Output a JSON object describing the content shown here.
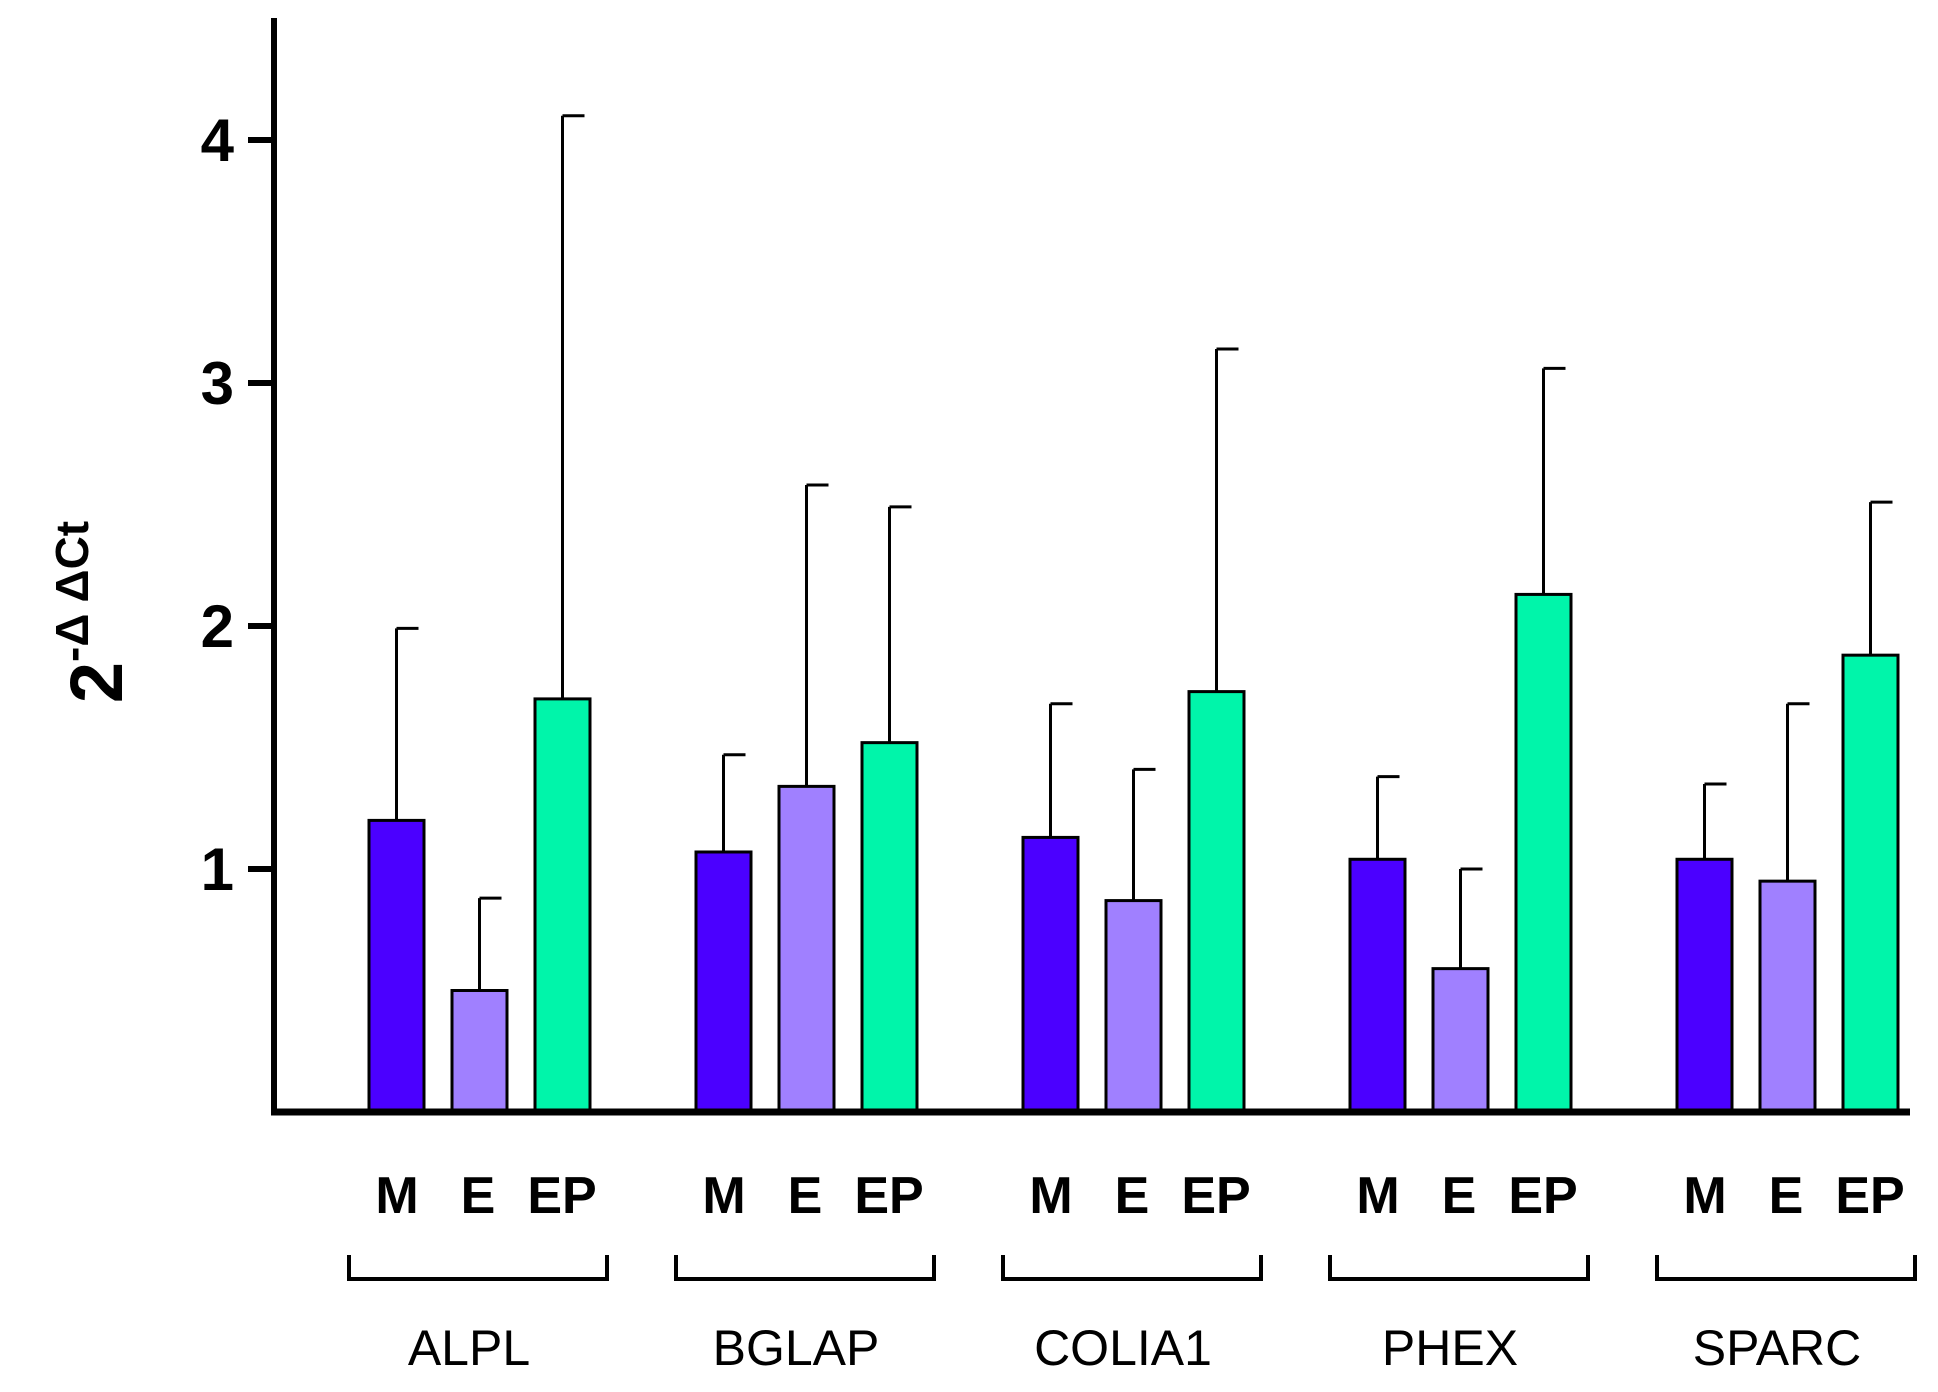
{
  "chart_data": {
    "type": "bar",
    "title": "",
    "xlabel": "",
    "ylabel": {
      "base": "2",
      "superscript": "-Δ ΔCt"
    },
    "ylim": [
      0,
      4.5
    ],
    "yticks": [
      1,
      2,
      3,
      4
    ],
    "yticks_labels": [
      "1",
      "2",
      "3",
      "4"
    ],
    "categories": [
      "ALPL",
      "BGLAP",
      "COLIA1",
      "PHEX",
      "SPARC"
    ],
    "series": [
      {
        "name": "M",
        "color": "#4b00ff",
        "values": [
          1.2,
          1.07,
          1.13,
          1.04,
          1.04
        ],
        "error_upper": [
          1.99,
          1.47,
          1.68,
          1.38,
          1.35
        ]
      },
      {
        "name": "E",
        "color": "#a080ff",
        "values": [
          0.5,
          1.34,
          0.87,
          0.59,
          0.95
        ],
        "error_upper": [
          0.88,
          2.58,
          1.41,
          1.0,
          1.68
        ]
      },
      {
        "name": "EP",
        "color": "#00f5aa",
        "values": [
          1.7,
          1.52,
          1.73,
          2.13,
          1.88
        ],
        "error_upper": [
          4.1,
          2.49,
          3.14,
          3.06,
          2.51
        ]
      }
    ],
    "grid": false,
    "legend": "none"
  }
}
